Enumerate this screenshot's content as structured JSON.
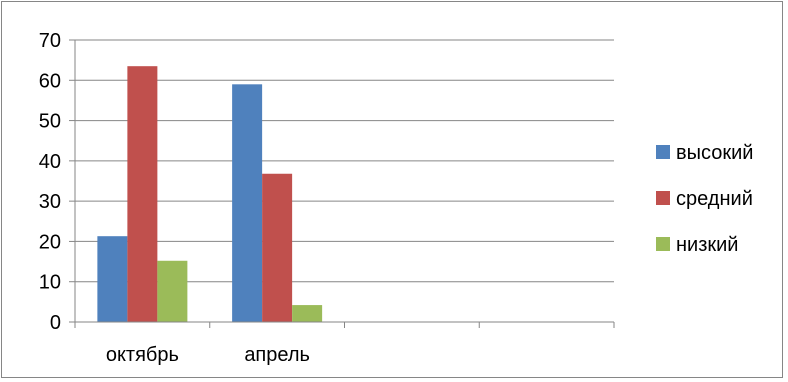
{
  "chart_data": {
    "type": "bar",
    "categories": [
      "октябрь",
      "апрель",
      "",
      ""
    ],
    "series": [
      {
        "name": "высокий",
        "values": [
          21.3,
          59,
          null,
          null
        ],
        "color": "#4F81BD"
      },
      {
        "name": "средний",
        "values": [
          63.5,
          36.8,
          null,
          null
        ],
        "color": "#C0504D"
      },
      {
        "name": "низкий",
        "values": [
          15.2,
          4.2,
          null,
          null
        ],
        "color": "#9BBB59"
      }
    ],
    "title": "",
    "xlabel": "",
    "ylabel": "",
    "ylim": [
      0,
      70
    ],
    "yticks": [
      0,
      10,
      20,
      30,
      40,
      50,
      60,
      70
    ],
    "grid": true,
    "legend_position": "right",
    "gridline_color": "#868686"
  }
}
